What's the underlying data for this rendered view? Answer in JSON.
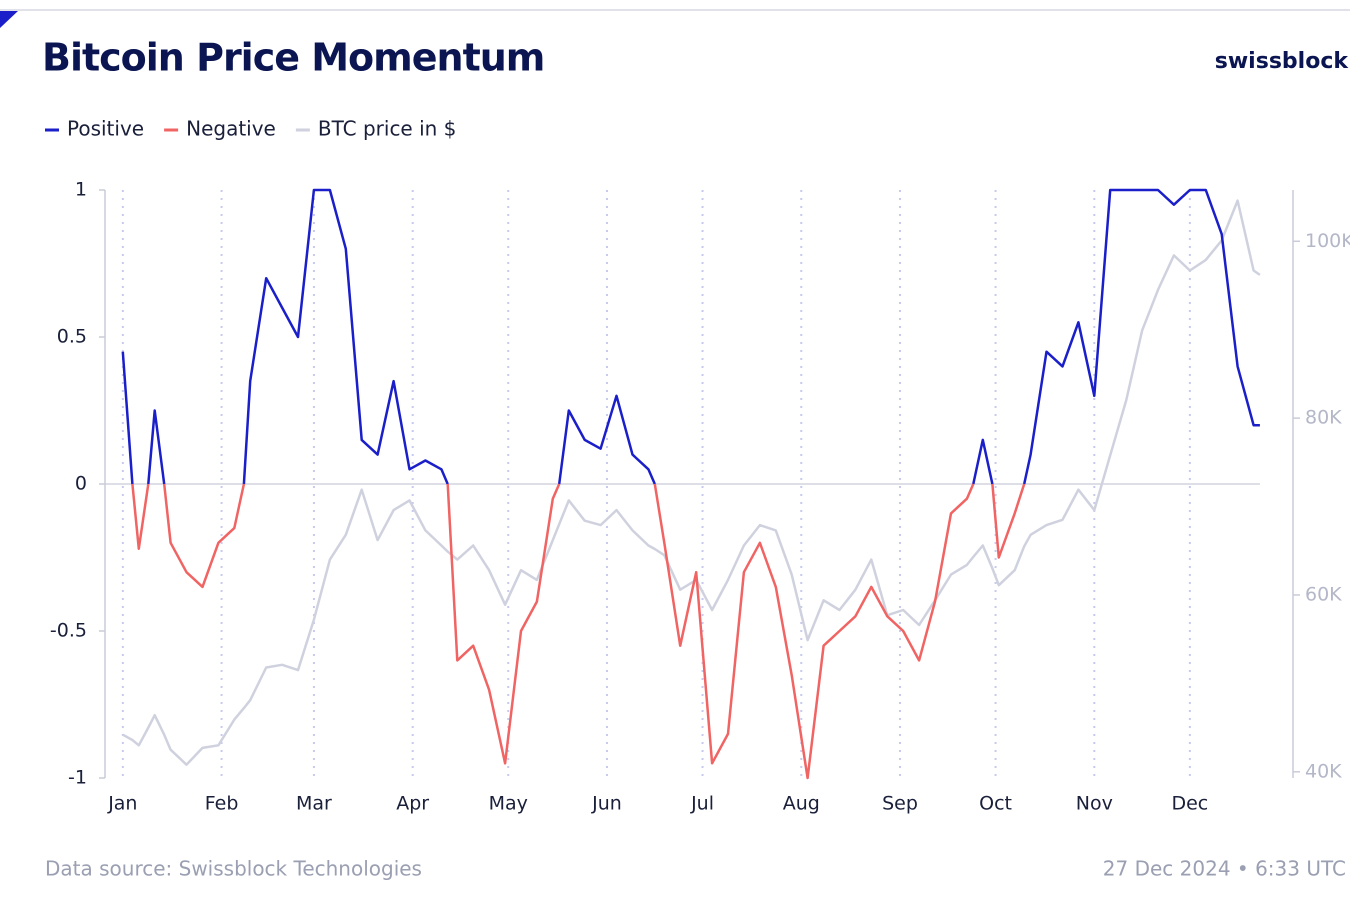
{
  "chart_data": {
    "type": "line",
    "title": "Bitcoin Price Momentum",
    "brand": "swissblock",
    "source": "Data source: Swissblock Technologies",
    "timestamp": "27 Dec 2024 • 6:33 UTC",
    "legend": "top-left",
    "x_grid": true,
    "xlim": [
      -5.6,
      363.3
    ],
    "xticks": [
      {
        "value": 0,
        "label": "Jan"
      },
      {
        "value": 31,
        "label": "Feb"
      },
      {
        "value": 60,
        "label": "Mar"
      },
      {
        "value": 91,
        "label": "Apr"
      },
      {
        "value": 121,
        "label": "May"
      },
      {
        "value": 152,
        "label": "Jun"
      },
      {
        "value": 182,
        "label": "Jul"
      },
      {
        "value": 213,
        "label": "Aug"
      },
      {
        "value": 244,
        "label": "Sep"
      },
      {
        "value": 274,
        "label": "Oct"
      },
      {
        "value": 305,
        "label": "Nov"
      },
      {
        "value": 335,
        "label": "Dec"
      }
    ],
    "ylim": [
      -1,
      1
    ],
    "yticks": [
      -1,
      -0.5,
      0,
      0.5,
      1
    ],
    "y2lim": [
      39300,
      105800
    ],
    "y2ticks": [
      {
        "value": 40000,
        "label": "40K"
      },
      {
        "value": 60000,
        "label": "60K"
      },
      {
        "value": 80000,
        "label": "80K"
      },
      {
        "value": 100000,
        "label": "100K"
      }
    ],
    "x": [
      0,
      3,
      5,
      8,
      10,
      13,
      15,
      20,
      25,
      30,
      35,
      38,
      40,
      45,
      50,
      55,
      60,
      65,
      70,
      75,
      80,
      85,
      90,
      95,
      100,
      102,
      105,
      110,
      115,
      120,
      125,
      130,
      135,
      137,
      140,
      145,
      150,
      155,
      160,
      165,
      167,
      170,
      175,
      180,
      185,
      190,
      195,
      200,
      205,
      210,
      215,
      220,
      225,
      230,
      235,
      240,
      245,
      250,
      255,
      260,
      265,
      267,
      270,
      273,
      275,
      280,
      283,
      285,
      290,
      295,
      300,
      305,
      310,
      315,
      320,
      325,
      330,
      335,
      340,
      345,
      350,
      355,
      357
    ],
    "series": [
      {
        "name": "Positive",
        "color": "#1a1fc9",
        "values": [
          0.45,
          0,
          null,
          0,
          0.25,
          0,
          null,
          null,
          null,
          null,
          null,
          0,
          0.35,
          0.7,
          0.6,
          0.5,
          1,
          1,
          0.8,
          0.15,
          0.1,
          0.35,
          0.05,
          0.08,
          0.05,
          0,
          null,
          null,
          null,
          null,
          null,
          null,
          null,
          0,
          0.25,
          0.15,
          0.12,
          0.3,
          0.1,
          0.05,
          0,
          null,
          null,
          null,
          null,
          null,
          null,
          null,
          null,
          null,
          null,
          null,
          null,
          null,
          null,
          null,
          null,
          null,
          null,
          null,
          null,
          0,
          0.15,
          0,
          null,
          null,
          0,
          0.1,
          0.45,
          0.4,
          0.55,
          0.3,
          1,
          1,
          1,
          1,
          0.95,
          1,
          1,
          0.85,
          0.4,
          0.2,
          0.2
        ]
      },
      {
        "name": "Negative",
        "color": "#f06463",
        "values": [
          null,
          0,
          -0.22,
          0,
          null,
          0,
          -0.2,
          -0.3,
          -0.35,
          -0.2,
          -0.15,
          0,
          null,
          null,
          null,
          null,
          null,
          null,
          null,
          null,
          null,
          null,
          null,
          null,
          null,
          0,
          -0.6,
          -0.55,
          -0.7,
          -0.95,
          -0.5,
          -0.4,
          -0.05,
          0,
          null,
          null,
          null,
          null,
          null,
          null,
          0,
          -0.2,
          -0.55,
          -0.3,
          -0.95,
          -0.85,
          -0.3,
          -0.2,
          -0.35,
          -0.65,
          -1,
          -0.55,
          -0.5,
          -0.45,
          -0.35,
          -0.45,
          -0.5,
          -0.6,
          -0.4,
          -0.1,
          -0.05,
          0,
          null,
          0,
          -0.25,
          -0.1,
          0,
          null,
          null,
          null,
          null,
          null,
          null,
          null,
          null,
          null,
          null,
          null,
          null,
          null,
          null,
          null,
          null
        ]
      },
      {
        "name": "BTC price in $",
        "color": "#cfd2de",
        "axis": "y2",
        "values": [
          44200,
          43600,
          43000,
          45000,
          46400,
          44200,
          42500,
          40800,
          42700,
          43000,
          45900,
          47200,
          48100,
          51800,
          52100,
          51500,
          57200,
          64000,
          66800,
          71900,
          66200,
          69600,
          70700,
          67300,
          65600,
          64900,
          64000,
          65600,
          62800,
          58900,
          62800,
          61700,
          66200,
          68000,
          70700,
          68400,
          67900,
          69600,
          67300,
          65600,
          65200,
          64500,
          60600,
          61700,
          58300,
          61700,
          65600,
          67900,
          67300,
          62300,
          54900,
          59400,
          58300,
          60600,
          64000,
          57700,
          58300,
          56600,
          59400,
          62300,
          63400,
          64300,
          65600,
          63000,
          61100,
          62800,
          65500,
          66800,
          67900,
          68500,
          71900,
          69600,
          75800,
          82000,
          89900,
          94500,
          98400,
          96700,
          97900,
          100100,
          104600,
          96700,
          96200
        ]
      }
    ]
  }
}
